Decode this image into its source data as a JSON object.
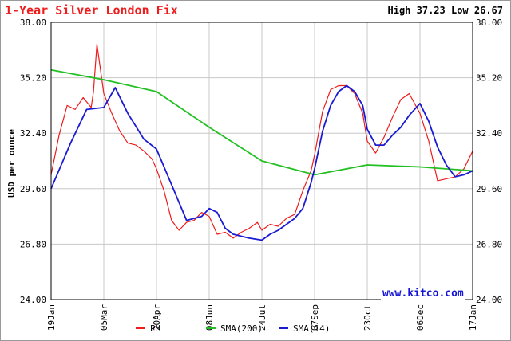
{
  "header": {
    "title": "1-Year Silver London Fix",
    "high_low": "High 37.23 Low 26.67"
  },
  "watermark": "www.kitco.com",
  "colors": {
    "pm": "#ee1c1c",
    "sma200": "#22c022",
    "sma14": "#1a1ad2",
    "grid": "#c8c8c8",
    "axis": "#000000"
  },
  "chart_data": {
    "type": "line",
    "title": "1-Year Silver London Fix",
    "ylabel": "USD per ounce",
    "xlabel": "",
    "ylim": [
      24.0,
      38.0
    ],
    "yticks": [
      "24.00",
      "26.80",
      "29.60",
      "32.40",
      "35.20",
      "38.00"
    ],
    "xticks": [
      "19Jan",
      "05Mar",
      "20Apr",
      "08Jun",
      "24Jul",
      "07Sep",
      "23Oct",
      "06Dec",
      "17Jan"
    ],
    "grid": true,
    "legend_position": "bottom",
    "series": [
      {
        "name": "PM",
        "color": "#ee1c1c",
        "x": [
          "19Jan",
          "26Jan",
          "02Feb",
          "09Feb",
          "16Feb",
          "23Feb",
          "25Feb",
          "28Feb",
          "05Mar",
          "12Mar",
          "19Mar",
          "26Mar",
          "02Apr",
          "09Apr",
          "16Apr",
          "20Apr",
          "27Apr",
          "04May",
          "11May",
          "18May",
          "25May",
          "01Jun",
          "08Jun",
          "15Jun",
          "22Jun",
          "29Jun",
          "06Jul",
          "13Jul",
          "20Jul",
          "24Jul",
          "31Jul",
          "07Aug",
          "14Aug",
          "21Aug",
          "28Aug",
          "04Sep",
          "07Sep",
          "14Sep",
          "21Sep",
          "28Sep",
          "05Oct",
          "12Oct",
          "19Oct",
          "23Oct",
          "30Oct",
          "06Nov",
          "13Nov",
          "20Nov",
          "27Nov",
          "06Dec",
          "13Dec",
          "20Dec",
          "27Dec",
          "03Jan",
          "10Jan",
          "17Jan"
        ],
        "values": [
          30.3,
          32.3,
          33.8,
          33.6,
          34.2,
          33.7,
          34.5,
          36.9,
          34.4,
          33.4,
          32.5,
          31.9,
          31.8,
          31.5,
          31.1,
          30.6,
          29.5,
          28.0,
          27.5,
          27.9,
          28.0,
          28.4,
          28.2,
          27.3,
          27.4,
          27.1,
          27.4,
          27.6,
          27.9,
          27.5,
          27.8,
          27.7,
          28.1,
          28.3,
          29.5,
          30.5,
          31.3,
          33.5,
          34.6,
          34.8,
          34.8,
          34.4,
          33.4,
          32.0,
          31.4,
          32.2,
          33.2,
          34.1,
          34.4,
          33.4,
          32.0,
          30.0,
          30.1,
          30.2,
          30.6,
          31.5
        ]
      },
      {
        "name": "SMA(200)",
        "color": "#22c022",
        "x": [
          "19Jan",
          "05Mar",
          "20Apr",
          "08Jun",
          "24Jul",
          "07Sep",
          "23Oct",
          "06Dec",
          "17Jan"
        ],
        "values": [
          35.6,
          35.1,
          34.5,
          32.7,
          31.0,
          30.3,
          30.8,
          30.7,
          30.5
        ]
      },
      {
        "name": "SMA(14)",
        "color": "#1a1ad2",
        "x": [
          "19Jan",
          "05Feb",
          "19Feb",
          "05Mar",
          "15Mar",
          "26Mar",
          "09Apr",
          "20Apr",
          "04May",
          "18May",
          "01Jun",
          "08Jun",
          "15Jun",
          "22Jun",
          "29Jun",
          "06Jul",
          "13Jul",
          "24Jul",
          "31Jul",
          "07Aug",
          "21Aug",
          "28Aug",
          "04Sep",
          "07Sep",
          "14Sep",
          "21Sep",
          "28Sep",
          "05Oct",
          "12Oct",
          "19Oct",
          "23Oct",
          "30Oct",
          "06Nov",
          "13Nov",
          "20Nov",
          "27Nov",
          "06Dec",
          "13Dec",
          "20Dec",
          "27Dec",
          "03Jan",
          "10Jan",
          "17Jan"
        ],
        "values": [
          29.6,
          31.9,
          33.6,
          33.7,
          34.7,
          33.4,
          32.1,
          31.6,
          29.8,
          28.0,
          28.2,
          28.6,
          28.4,
          27.6,
          27.3,
          27.2,
          27.1,
          27.0,
          27.3,
          27.5,
          28.1,
          28.6,
          29.9,
          30.6,
          32.5,
          33.8,
          34.5,
          34.8,
          34.5,
          33.8,
          32.6,
          31.8,
          31.8,
          32.3,
          32.7,
          33.3,
          33.9,
          33.0,
          31.7,
          30.8,
          30.2,
          30.3,
          30.5
        ]
      }
    ]
  }
}
